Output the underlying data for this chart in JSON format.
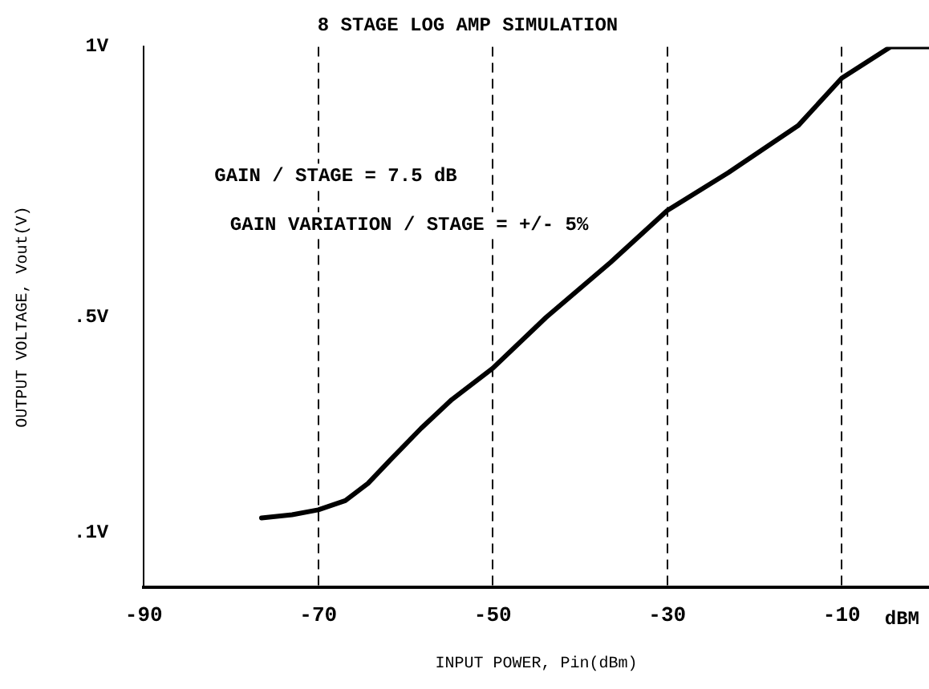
{
  "chart_data": {
    "type": "line",
    "title": "8 STAGE LOG AMP SIMULATION",
    "xlabel": "INPUT POWER, Pin(dBm)",
    "ylabel": "OUTPUT VOLTAGE, Vout(V)",
    "annotations": [
      "GAIN / STAGE = 7.5 dB",
      "GAIN VARIATION / STAGE = +/- 5%",
      "dBM"
    ],
    "x": [
      -76.5,
      -73,
      -70,
      -66.9,
      -64.3,
      -61.7,
      -58.2,
      -54.7,
      -50,
      -43.9,
      -36.5,
      -30,
      -23,
      -15,
      -10,
      -4.4,
      0
    ],
    "series": [
      {
        "color": "#000000",
        "values": [
          0.128,
          0.134,
          0.143,
          0.16,
          0.192,
          0.236,
          0.294,
          0.347,
          0.405,
          0.499,
          0.601,
          0.697,
          0.767,
          0.854,
          0.942,
          1.0,
          1.0
        ]
      }
    ],
    "xlim": [
      -90,
      0
    ],
    "xticks": [
      -90,
      -70,
      -50,
      -30,
      -10
    ],
    "ylim": [
      0,
      1
    ],
    "yticks": [
      {
        "value": 0.1,
        "label": ".1V"
      },
      {
        "value": 0.5,
        "label": ".5V"
      },
      {
        "value": 1,
        "label": "1V"
      }
    ],
    "grid": "x",
    "legend": false,
    "marker": "none",
    "line_style": "solid"
  }
}
